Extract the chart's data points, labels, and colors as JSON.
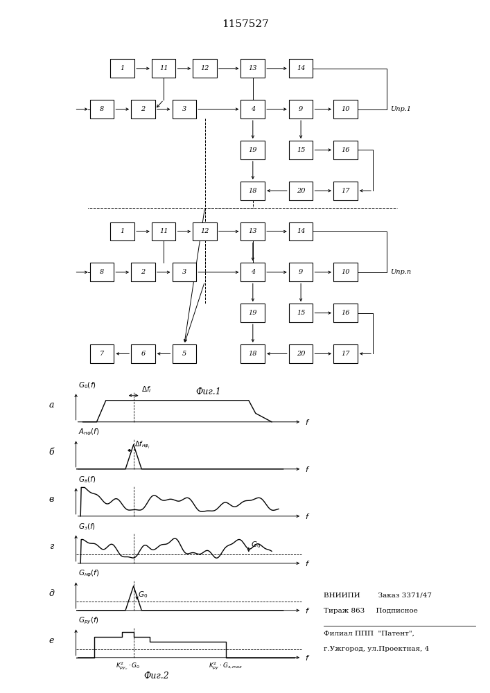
{
  "title": "1157527",
  "bg_color": "#ffffff",
  "row1_u_label": "Uпр.1",
  "row2_u_label": "Uпр.n",
  "fig1_caption": "Фиг.1",
  "fig2_caption": "Фиг.2",
  "panel_letters": [
    "а",
    "б",
    "в",
    "г",
    "д",
    "е"
  ],
  "vnipi_line1": "ВНИИПИ        Заказ 3371/47",
  "vnipi_line2": "Тираж 863     Подписное",
  "filial_line1": "Филиал ППП  \"Патент\",",
  "filial_line2": "г.Ужгород, ул.Проектная, 4"
}
